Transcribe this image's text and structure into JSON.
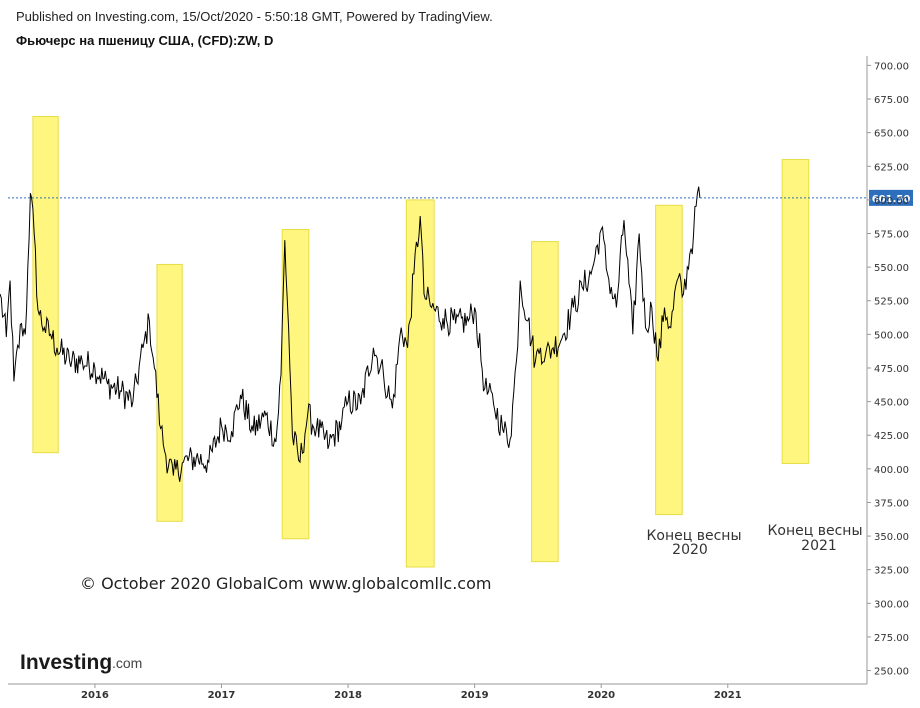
{
  "header": {
    "published": "Published on Investing.com, 15/Oct/2020 - 5:50:18 GMT, Powered by TradingView.",
    "instrument": "Фьючерс на пшеницу США, (CFD):ZW, D"
  },
  "chart_data": {
    "type": "line",
    "title": "Фьючерс на пшеницу США, (CFD):ZW, D",
    "ylim": [
      240,
      707
    ],
    "x_range": [
      2015.25,
      2022.1
    ],
    "y_ticks": [
      "250.00",
      "275.00",
      "300.00",
      "325.00",
      "350.00",
      "375.00",
      "400.00",
      "425.00",
      "450.00",
      "475.00",
      "500.00",
      "525.00",
      "550.00",
      "575.00",
      "600.00",
      "625.00",
      "650.00",
      "675.00",
      "700.00"
    ],
    "x_ticks": [
      {
        "label": "2016",
        "x": 2016.0
      },
      {
        "label": "2017",
        "x": 2017.0
      },
      {
        "label": "2018",
        "x": 2018.0
      },
      {
        "label": "2019",
        "x": 2019.0
      },
      {
        "label": "2020",
        "x": 2020.0
      },
      {
        "label": "2021",
        "x": 2021.0
      }
    ],
    "current_price": {
      "value": 601.5,
      "label": "601.50"
    },
    "series": [
      {
        "x": [
          2015.25,
          2015.3,
          2015.33,
          2015.36,
          2015.42,
          2015.45,
          2015.47,
          2015.49,
          2015.52,
          2015.55,
          2015.6,
          2015.65,
          2015.7,
          2015.8,
          2015.9,
          2016.0,
          2016.1,
          2016.2,
          2016.3,
          2016.38,
          2016.43,
          2016.47,
          2016.52,
          2016.56,
          2016.62,
          2016.7,
          2016.8,
          2016.9,
          2017.0,
          2017.08,
          2017.15,
          2017.25,
          2017.35,
          2017.43,
          2017.47,
          2017.5,
          2017.53,
          2017.56,
          2017.62,
          2017.68,
          2017.75,
          2017.85,
          2017.95,
          2018.0,
          2018.1,
          2018.2,
          2018.28,
          2018.35,
          2018.42,
          2018.47,
          2018.52,
          2018.57,
          2018.6,
          2018.66,
          2018.75,
          2018.85,
          2018.95,
          2019.0,
          2019.08,
          2019.15,
          2019.22,
          2019.28,
          2019.33,
          2019.36,
          2019.42,
          2019.48,
          2019.52,
          2019.56,
          2019.62,
          2019.7,
          2019.78,
          2019.85,
          2019.92,
          2020.0,
          2020.05,
          2020.12,
          2020.18,
          2020.25,
          2020.3,
          2020.35,
          2020.4,
          2020.45,
          2020.5,
          2020.55,
          2020.6,
          2020.65,
          2020.7,
          2020.73,
          2020.76,
          2020.78
        ],
        "y": [
          530,
          498,
          540,
          465,
          508,
          500,
          550,
          605,
          575,
          518,
          505,
          500,
          490,
          480,
          480,
          475,
          463,
          458,
          450,
          490,
          510,
          475,
          430,
          410,
          395,
          405,
          408,
          405,
          432,
          428,
          455,
          428,
          440,
          420,
          470,
          570,
          505,
          425,
          405,
          440,
          430,
          418,
          435,
          450,
          448,
          490,
          470,
          445,
          505,
          490,
          545,
          588,
          530,
          520,
          512,
          508,
          510,
          520,
          460,
          448,
          430,
          422,
          480,
          540,
          510,
          480,
          490,
          485,
          490,
          500,
          520,
          535,
          545,
          578,
          545,
          520,
          585,
          500,
          575,
          505,
          520,
          480,
          520,
          505,
          540,
          530,
          560,
          575,
          605,
          601.5
        ],
        "name": "ZW"
      }
    ],
    "highlight_bands": [
      {
        "x0": 2015.51,
        "x1": 2015.71,
        "y0": 412,
        "y1": 662
      },
      {
        "x0": 2016.49,
        "x1": 2016.69,
        "y0": 361,
        "y1": 552
      },
      {
        "x0": 2017.48,
        "x1": 2017.69,
        "y0": 348,
        "y1": 578
      },
      {
        "x0": 2018.46,
        "x1": 2018.68,
        "y0": 327,
        "y1": 600
      },
      {
        "x0": 2019.45,
        "x1": 2019.66,
        "y0": 331,
        "y1": 569
      },
      {
        "x0": 2020.43,
        "x1": 2020.64,
        "y0": 366,
        "y1": 596
      },
      {
        "x0": 2021.43,
        "x1": 2021.64,
        "y0": 404,
        "y1": 630
      }
    ],
    "grid": false,
    "highlight_color": "#fff67a",
    "line_color": "#000000",
    "price_color": "#2d6fbd"
  },
  "annotations": {
    "spring_2020": [
      "Конец весны",
      "2020"
    ],
    "spring_2021": [
      "Конец весны",
      "2021"
    ],
    "copyright": "© October 2020 GlobalCom www.globalcomllc.com"
  },
  "logo": {
    "main": "Investing",
    "sub": ".com"
  }
}
